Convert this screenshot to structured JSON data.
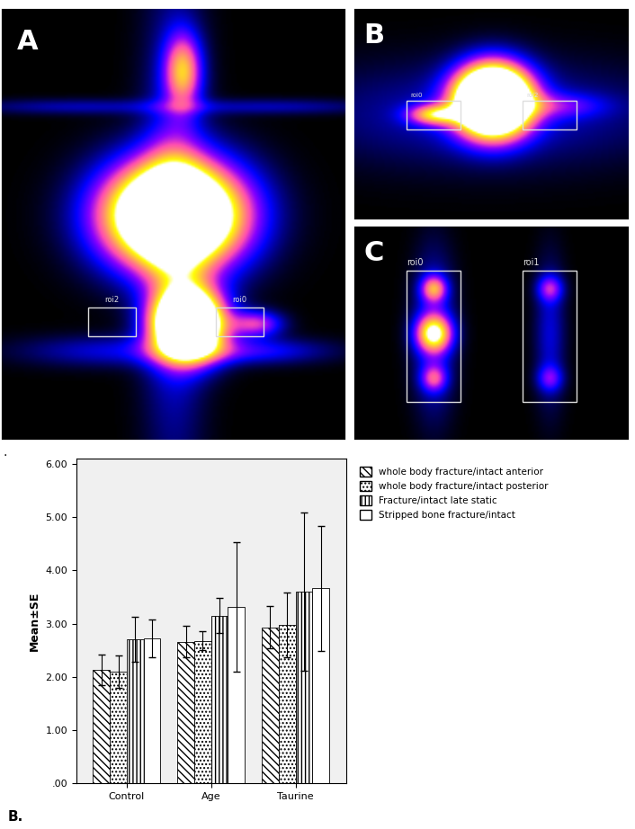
{
  "chart_data": {
    "type": "bar",
    "y_label": "Mean±SE",
    "categories": [
      "Control",
      "Age",
      "Taurine"
    ],
    "series": [
      {
        "name": "whole body fracture/intact anterior",
        "color": "#ffffff",
        "values": [
          2.13,
          2.66,
          2.93
        ],
        "errors": [
          0.28,
          0.3,
          0.4
        ]
      },
      {
        "name": "whole body fracture/intact posterior",
        "color": "#ffffff",
        "values": [
          2.1,
          2.68,
          2.97
        ],
        "errors": [
          0.3,
          0.18,
          0.61
        ]
      },
      {
        "name": "Fracture/intact late static",
        "color": "#ffffff",
        "values": [
          2.7,
          3.15,
          3.6
        ],
        "errors": [
          0.42,
          0.33,
          1.49
        ]
      },
      {
        "name": "Stripped bone fracture/intact",
        "color": "#ffffff",
        "values": [
          2.72,
          3.31,
          3.66
        ],
        "errors": [
          0.36,
          1.21,
          1.18
        ]
      }
    ],
    "ylim": [
      0,
      6.1
    ],
    "yticks": [
      {
        "value": 0,
        "label": ".00"
      },
      {
        "value": 1,
        "label": "1.00"
      },
      {
        "value": 2,
        "label": "2.00"
      },
      {
        "value": 3,
        "label": "3.00"
      },
      {
        "value": 4,
        "label": "4.00"
      },
      {
        "value": 5,
        "label": "5.00"
      },
      {
        "value": 6,
        "label": "6.00"
      }
    ],
    "grid": false,
    "legend": "upper left"
  },
  "panels": [
    {
      "label": "A",
      "rois": [
        "roi2",
        "roi0"
      ]
    },
    {
      "label": "B",
      "rois": [
        "roi0",
        "roi2"
      ]
    },
    {
      "label": "C",
      "rois": [
        "roi0",
        "roi1"
      ]
    }
  ],
  "captions": [
    ".",
    "B."
  ]
}
